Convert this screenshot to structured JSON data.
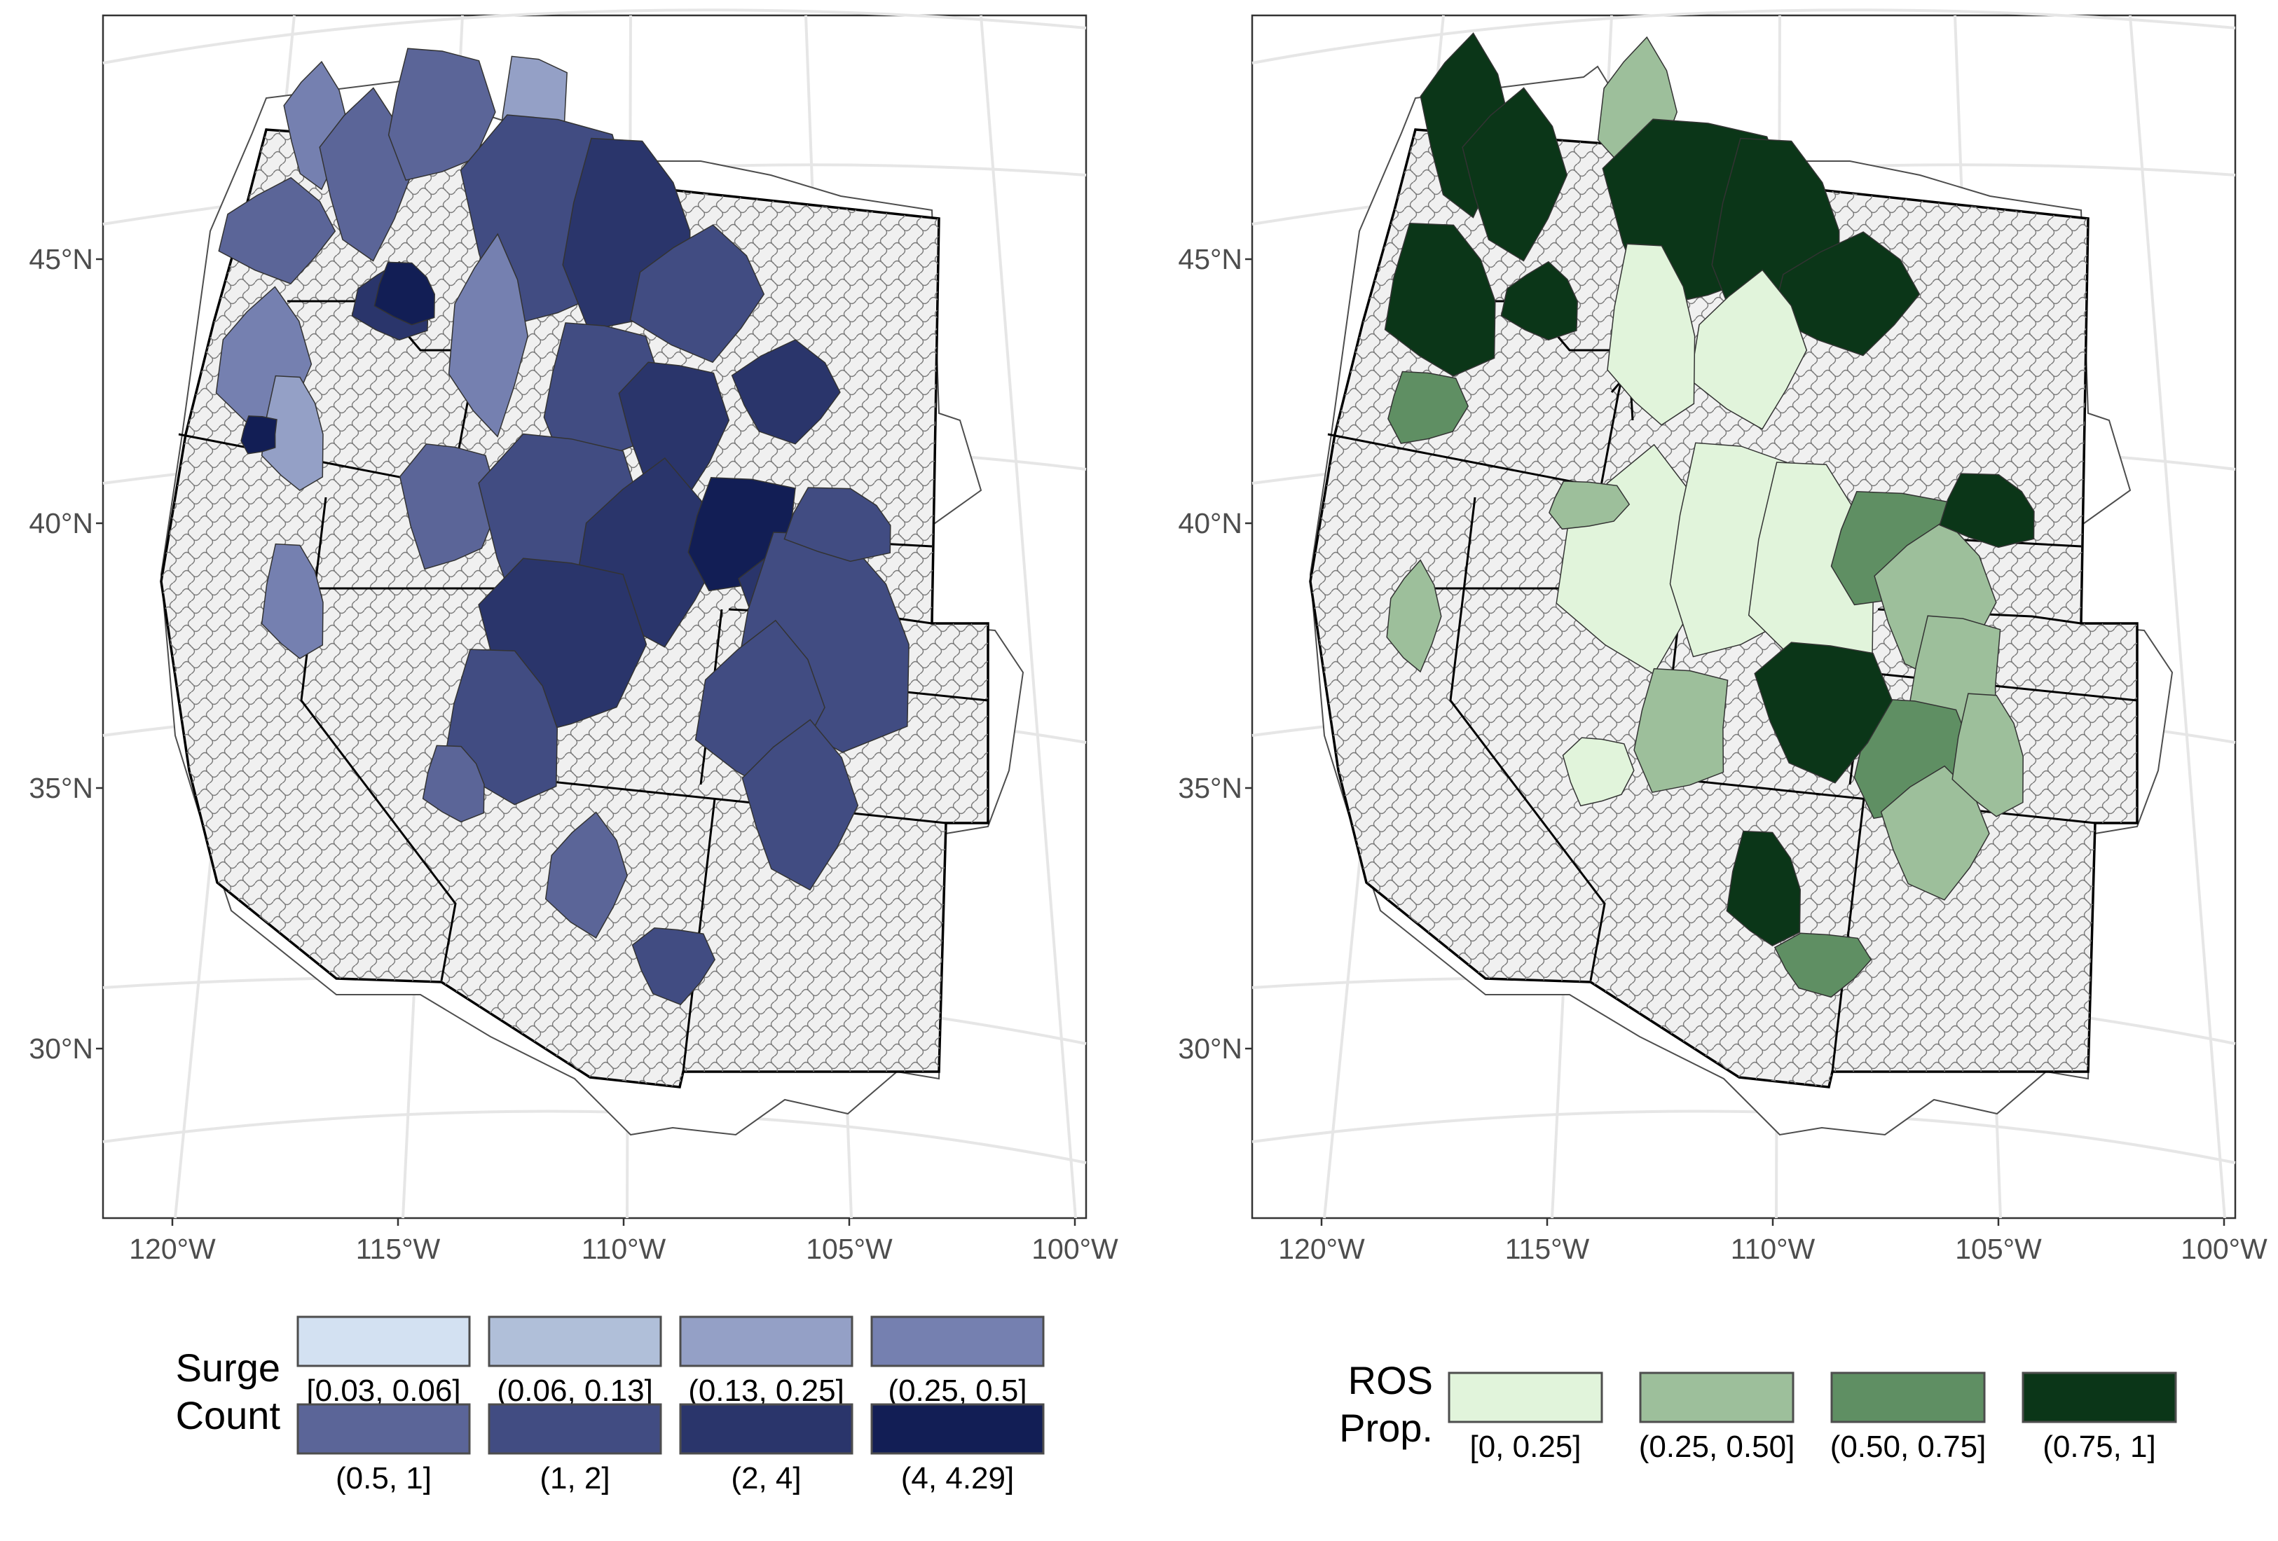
{
  "left_panel": {
    "lat_labels": [
      "45°N",
      "40°N",
      "35°N",
      "30°N"
    ],
    "lon_labels": [
      "120°W",
      "115°W",
      "110°W",
      "105°W",
      "100°W"
    ],
    "fill_color": "#3f4b86",
    "legend": {
      "title_lines": [
        "Surge",
        "Count"
      ],
      "items": [
        {
          "label": "[0.03, 0.06]",
          "color": "#d3e1f2"
        },
        {
          "label": "(0.06, 0.13]",
          "color": "#b0bfd9"
        },
        {
          "label": "(0.13, 0.25]",
          "color": "#94a0c6"
        },
        {
          "label": "(0.25, 0.5]",
          "color": "#7580b0"
        },
        {
          "label": "(0.5, 1]",
          "color": "#5b6598"
        },
        {
          "label": "(1, 2]",
          "color": "#414c82"
        },
        {
          "label": "(2, 4]",
          "color": "#2a356b"
        },
        {
          "label": "(4, 4.29]",
          "color": "#121e55"
        }
      ]
    }
  },
  "right_panel": {
    "lat_labels": [
      "45°N",
      "40°N",
      "35°N",
      "30°N"
    ],
    "lon_labels": [
      "120°W",
      "115°W",
      "110°W",
      "105°W",
      "100°W"
    ],
    "fill_color": "#5f8f63",
    "legend": {
      "title_lines": [
        "ROS",
        "Prop."
      ],
      "items": [
        {
          "label": "[0, 0.25]",
          "color": "#e1f4db"
        },
        {
          "label": "(0.25, 0.50]",
          "color": "#9dbf9b"
        },
        {
          "label": "(0.50, 0.75]",
          "color": "#5f8f63"
        },
        {
          "label": "(0.75, 1]",
          "color": "#0b3618"
        }
      ]
    }
  }
}
